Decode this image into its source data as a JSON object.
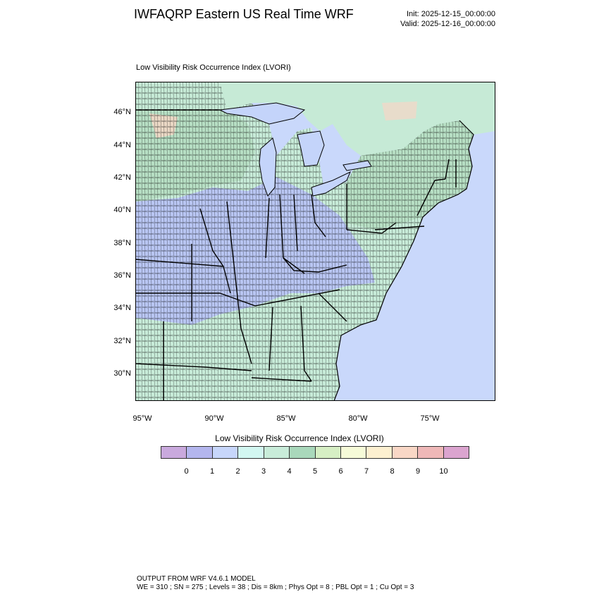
{
  "header": {
    "title": "IWFAQRP Eastern US Real Time WRF",
    "init": "Init: 2025-12-15_00:00:00",
    "valid": "Valid: 2025-12-16_00:00:00"
  },
  "map": {
    "subtitle": "Low Visibility Risk Occurrence Index   (LVORI)",
    "lat_labels": [
      "46°N",
      "44°N",
      "42°N",
      "40°N",
      "38°N",
      "36°N",
      "34°N",
      "32°N",
      "30°N"
    ],
    "lon_labels": [
      "95°W",
      "90°W",
      "85°W",
      "80°W",
      "75°W"
    ],
    "colors": {
      "ocean": "#c9d8fb",
      "land_low_risk": "#b8c4f4",
      "land_mid_risk": "#c8ecd9",
      "land_green": "#b7dfc4",
      "canada": "#c6ead6",
      "lakes": "#c4d4fa",
      "high_risk": "#f6d6c6"
    }
  },
  "colorbar": {
    "title": "Low Visibility Risk Occurrence Index  (LVORI)",
    "colors": [
      "#c9a9dd",
      "#b4b6ee",
      "#c7d6fb",
      "#d2f7f1",
      "#c8ecd9",
      "#a9d8bb",
      "#d6efc4",
      "#f6fbd8",
      "#fdf0d0",
      "#f9d7c6",
      "#efb8b8",
      "#dba4cf"
    ],
    "ticks": [
      "0",
      "1",
      "2",
      "3",
      "4",
      "5",
      "6",
      "7",
      "8",
      "9",
      "10"
    ]
  },
  "footer": {
    "line1": "OUTPUT FROM WRF V4.6.1 MODEL",
    "line2": "WE = 310 ; SN = 275 ; Levels = 38 ; Dis = 8km ; Phys Opt = 8 ; PBL Opt = 1 ; Cu Opt = 3"
  }
}
